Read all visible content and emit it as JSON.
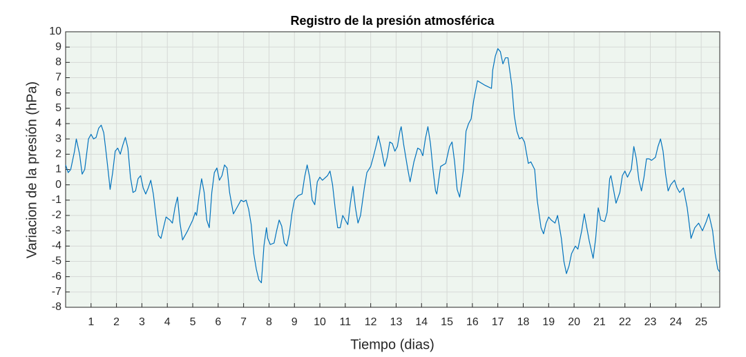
{
  "chart_data": {
    "type": "line",
    "title": "Registro de la presión atmosférica",
    "xlabel": "Tiempo (dias)",
    "ylabel": "Variacion de la presión (hPa)",
    "color": "#0072bd",
    "grid": true,
    "xlim": [
      0,
      25.73
    ],
    "ylim": [
      -8,
      10
    ],
    "xticks": [
      1,
      2,
      3,
      4,
      5,
      6,
      7,
      8,
      9,
      10,
      11,
      12,
      13,
      14,
      15,
      16,
      17,
      18,
      19,
      20,
      21,
      22,
      23,
      24,
      25
    ],
    "yticks": [
      -8,
      -7,
      -6,
      -5,
      -4,
      -3,
      -2,
      -1,
      0,
      1,
      2,
      3,
      4,
      5,
      6,
      7,
      8,
      9,
      10
    ],
    "x": [
      0,
      0.1,
      0.2,
      0.35,
      0.42,
      0.55,
      0.65,
      0.75,
      0.9,
      1.0,
      1.1,
      1.2,
      1.3,
      1.4,
      1.5,
      1.6,
      1.7,
      1.75,
      1.85,
      1.95,
      2.05,
      2.15,
      2.25,
      2.35,
      2.45,
      2.55,
      2.65,
      2.75,
      2.85,
      2.95,
      3.05,
      3.15,
      3.25,
      3.35,
      3.45,
      3.55,
      3.65,
      3.75,
      3.85,
      3.95,
      4.1,
      4.2,
      4.3,
      4.4,
      4.5,
      4.6,
      4.8,
      5.0,
      5.1,
      5.15,
      5.25,
      5.35,
      5.45,
      5.55,
      5.65,
      5.75,
      5.85,
      5.95,
      6.05,
      6.15,
      6.25,
      6.35,
      6.45,
      6.6,
      6.7,
      6.8,
      6.9,
      7.0,
      7.1,
      7.2,
      7.3,
      7.4,
      7.5,
      7.6,
      7.7,
      7.8,
      7.9,
      7.95,
      8.05,
      8.2,
      8.3,
      8.4,
      8.5,
      8.6,
      8.7,
      8.8,
      8.9,
      9.0,
      9.15,
      9.3,
      9.4,
      9.5,
      9.6,
      9.7,
      9.8,
      9.9,
      10.0,
      10.1,
      10.3,
      10.4,
      10.5,
      10.6,
      10.7,
      10.8,
      10.9,
      11.0,
      11.1,
      11.2,
      11.3,
      11.4,
      11.5,
      11.6,
      11.75,
      11.85,
      12.0,
      12.1,
      12.25,
      12.3,
      12.4,
      12.55,
      12.65,
      12.75,
      12.85,
      12.95,
      13.05,
      13.15,
      13.2,
      13.3,
      13.45,
      13.55,
      13.7,
      13.85,
      13.95,
      14.05,
      14.15,
      14.25,
      14.35,
      14.45,
      14.55,
      14.6,
      14.75,
      14.95,
      15.1,
      15.2,
      15.3,
      15.4,
      15.5,
      15.65,
      15.75,
      15.85,
      15.95,
      16.05,
      16.2,
      16.5,
      16.75,
      16.8,
      16.9,
      17.0,
      17.1,
      17.2,
      17.3,
      17.4,
      17.55,
      17.65,
      17.75,
      17.85,
      17.95,
      18.05,
      18.2,
      18.3,
      18.45,
      18.55,
      18.7,
      18.8,
      18.9,
      19.0,
      19.1,
      19.25,
      19.35,
      19.5,
      19.6,
      19.7,
      19.8,
      19.9,
      20.05,
      20.15,
      20.3,
      20.4,
      20.5,
      20.6,
      20.75,
      20.85,
      20.95,
      21.05,
      21.2,
      21.3,
      21.4,
      21.45,
      21.55,
      21.65,
      21.8,
      21.9,
      22.0,
      22.1,
      22.25,
      22.35,
      22.45,
      22.55,
      22.65,
      22.75,
      22.85,
      22.95,
      23.05,
      23.2,
      23.3,
      23.4,
      23.5,
      23.6,
      23.7,
      23.8,
      23.95,
      24.05,
      24.15,
      24.3,
      24.45,
      24.6,
      24.75,
      24.9,
      25.05,
      25.2,
      25.3,
      25.45,
      25.55,
      25.65,
      25.73
    ],
    "values": [
      1.3,
      0.8,
      1.0,
      2.2,
      3.0,
      2.0,
      0.7,
      1.0,
      3.0,
      3.3,
      3.0,
      3.1,
      3.7,
      3.9,
      3.4,
      2.0,
      0.5,
      -0.3,
      0.8,
      2.2,
      2.4,
      2.0,
      2.6,
      3.1,
      2.4,
      0.5,
      -0.5,
      -0.4,
      0.4,
      0.6,
      -0.2,
      -0.6,
      -0.2,
      0.3,
      -0.6,
      -2.0,
      -3.3,
      -3.5,
      -2.8,
      -2.1,
      -2.3,
      -2.5,
      -1.5,
      -0.8,
      -2.5,
      -3.6,
      -3.0,
      -2.3,
      -1.8,
      -2.0,
      -0.7,
      0.4,
      -0.5,
      -2.3,
      -2.8,
      -0.5,
      0.8,
      1.1,
      0.3,
      0.6,
      1.3,
      1.1,
      -0.5,
      -1.9,
      -1.6,
      -1.3,
      -1.0,
      -1.1,
      -1.0,
      -1.6,
      -2.6,
      -4.5,
      -5.5,
      -6.2,
      -6.4,
      -4.0,
      -2.8,
      -3.5,
      -3.9,
      -3.8,
      -3.0,
      -2.3,
      -2.7,
      -3.8,
      -4.0,
      -3.2,
      -1.9,
      -1.0,
      -0.7,
      -0.6,
      0.5,
      1.3,
      0.5,
      -1.0,
      -1.3,
      0.2,
      0.5,
      0.3,
      0.6,
      0.9,
      0,
      -1.5,
      -2.8,
      -2.8,
      -2.0,
      -2.3,
      -2.6,
      -1.2,
      -0.1,
      -1.5,
      -2.5,
      -2.0,
      -0.2,
      0.8,
      1.2,
      1.8,
      2.8,
      3.2,
      2.5,
      1.2,
      1.8,
      2.8,
      2.7,
      2.2,
      2.5,
      3.5,
      3.8,
      2.6,
      1.1,
      0.2,
      1.5,
      2.4,
      2.3,
      1.9,
      3.0,
      3.8,
      2.7,
      1.0,
      -0.4,
      -0.6,
      1.2,
      1.4,
      2.5,
      2.8,
      1.5,
      -0.3,
      -0.8,
      1.0,
      3.5,
      4.0,
      4.3,
      5.5,
      6.8,
      6.5,
      6.3,
      7.5,
      8.4,
      8.9,
      8.7,
      7.9,
      8.3,
      8.3,
      6.5,
      4.5,
      3.5,
      3.0,
      3.1,
      2.8,
      1.4,
      1.5,
      1.0,
      -1.0,
      -2.8,
      -3.2,
      -2.5,
      -2.1,
      -2.3,
      -2.5,
      -2.0,
      -3.5,
      -5.0,
      -5.8,
      -5.3,
      -4.5,
      -4.0,
      -4.2,
      -3.0,
      -1.9,
      -2.8,
      -3.7,
      -4.8,
      -3.5,
      -1.5,
      -2.3,
      -2.4,
      -1.8,
      0.4,
      0.6,
      -0.3,
      -1.2,
      -0.5,
      0.6,
      0.9,
      0.5,
      1.0,
      2.5,
      1.7,
      0.3,
      -0.4,
      0.5,
      1.7,
      1.7,
      1.6,
      1.8,
      2.5,
      3.0,
      2.2,
      0.7,
      -0.4,
      0.0,
      0.3,
      -0.2,
      -0.5,
      -0.2,
      -1.5,
      -3.5,
      -2.8,
      -2.5,
      -3.0,
      -2.4,
      -1.9,
      -3.0,
      -4.5,
      -5.5,
      -5.7
    ]
  }
}
